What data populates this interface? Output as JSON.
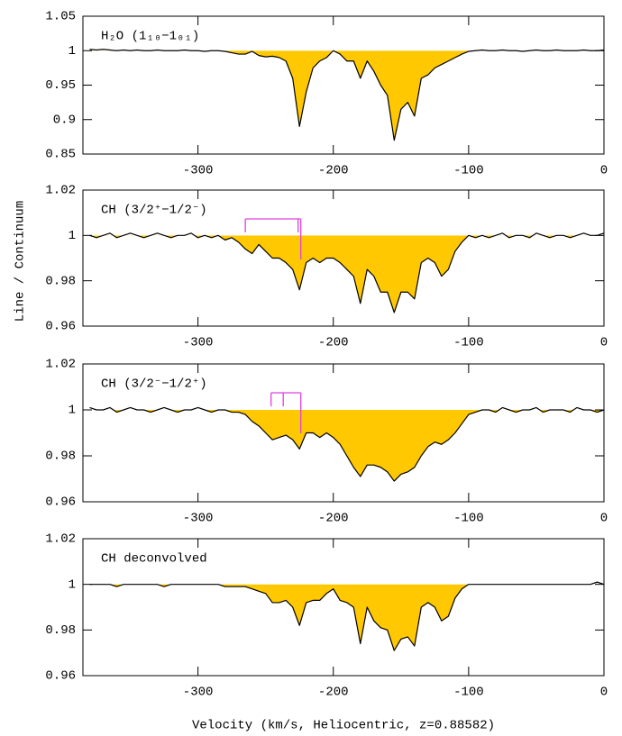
{
  "xlabel": "Velocity (km/s, Heliocentric, z=0.88582)",
  "ylabel": "Line / Continuum",
  "chart_data": [
    {
      "type": "line",
      "title": "H₂O (1₁₀−1₀₁)",
      "x": [
        -380,
        -375,
        -370,
        -365,
        -360,
        -355,
        -350,
        -345,
        -340,
        -335,
        -330,
        -325,
        -320,
        -315,
        -310,
        -305,
        -300,
        -295,
        -290,
        -285,
        -280,
        -275,
        -270,
        -265,
        -260,
        -255,
        -250,
        -245,
        -240,
        -235,
        -230,
        -225,
        -220,
        -215,
        -210,
        -205,
        -200,
        -195,
        -190,
        -185,
        -180,
        -175,
        -170,
        -165,
        -160,
        -155,
        -150,
        -145,
        -140,
        -135,
        -130,
        -125,
        -120,
        -115,
        -110,
        -105,
        -100,
        -95,
        -90,
        -85,
        -80,
        -75,
        -70,
        -65,
        -60,
        -55,
        -50,
        -45,
        -40,
        -35,
        -30,
        -25,
        -20,
        -15,
        -10,
        -5,
        0
      ],
      "values": [
        1.002,
        1.001,
        1.002,
        1.001,
        1.0,
        1.001,
        1.0,
        1.001,
        1.0,
        1.0,
        1.001,
        1.0,
        1.0,
        1.0,
        1.001,
        1.0,
        1.0,
        0.999,
        1.0,
        1.0,
        0.999,
        0.997,
        0.995,
        0.995,
        0.999,
        0.993,
        0.991,
        0.992,
        0.99,
        0.985,
        0.96,
        0.89,
        0.94,
        0.975,
        0.985,
        0.99,
        1.0,
        0.995,
        0.985,
        0.985,
        0.96,
        0.985,
        0.97,
        0.95,
        0.935,
        0.87,
        0.915,
        0.925,
        0.905,
        0.96,
        0.965,
        0.975,
        0.98,
        0.985,
        0.99,
        0.995,
        0.999,
        1.0,
        1.001,
        1.0,
        1.0,
        1.001,
        1.0,
        1.0,
        0.999,
        1.0,
        1.001,
        1.0,
        1.0,
        1.001,
        1.0,
        1.0,
        1.0,
        1.001,
        1.0,
        1.0,
        1.001
      ],
      "line_color": "#000000",
      "fill_color": "#ffc800",
      "continuum": 1,
      "xlim": [
        -385,
        0
      ],
      "xticks": [
        -300,
        -200,
        -100,
        0
      ],
      "ylim": [
        0.85,
        1.05
      ],
      "yticks": [
        0.85,
        0.9,
        0.95,
        1,
        1.05
      ]
    },
    {
      "type": "line",
      "title": "CH (3/2⁺−1/2⁻)",
      "x": [
        -380,
        -375,
        -370,
        -365,
        -360,
        -355,
        -350,
        -345,
        -340,
        -335,
        -330,
        -325,
        -320,
        -315,
        -310,
        -305,
        -300,
        -295,
        -290,
        -285,
        -280,
        -275,
        -270,
        -265,
        -260,
        -255,
        -250,
        -245,
        -240,
        -235,
        -230,
        -225,
        -220,
        -215,
        -210,
        -205,
        -200,
        -195,
        -190,
        -185,
        -180,
        -175,
        -170,
        -165,
        -160,
        -155,
        -150,
        -145,
        -140,
        -135,
        -130,
        -125,
        -120,
        -115,
        -110,
        -105,
        -100,
        -95,
        -90,
        -85,
        -80,
        -75,
        -70,
        -65,
        -60,
        -55,
        -50,
        -45,
        -40,
        -35,
        -30,
        -25,
        -20,
        -15,
        -10,
        -5,
        0
      ],
      "values": [
        1.0,
        0.999,
        1.0,
        1.001,
        0.999,
        1.0,
        1.001,
        1.0,
        0.999,
        1.0,
        1.001,
        1.0,
        0.999,
        1.0,
        1.0,
        1.001,
        0.999,
        1.0,
        0.999,
        1.0,
        0.998,
        0.999,
        0.997,
        0.994,
        0.992,
        0.996,
        0.993,
        0.99,
        0.99,
        0.988,
        0.985,
        0.976,
        0.988,
        0.99,
        0.988,
        0.99,
        0.99,
        0.988,
        0.985,
        0.982,
        0.97,
        0.985,
        0.982,
        0.975,
        0.975,
        0.966,
        0.975,
        0.975,
        0.972,
        0.988,
        0.99,
        0.988,
        0.982,
        0.985,
        0.993,
        0.997,
        1.0,
        0.999,
        1.0,
        0.999,
        1.0,
        1.001,
        0.999,
        1.0,
        1.0,
        0.999,
        1.001,
        1.0,
        0.999,
        1.0,
        1.0,
        0.999,
        1.0,
        1.001,
        1.0,
        1.0,
        1.001
      ],
      "line_color": "#000000",
      "fill_color": "#ffc800",
      "continuum": 1,
      "hfs_markers": {
        "color": "#e040e0",
        "x": [
          -265,
          -226,
          -224
        ]
      },
      "xlim": [
        -385,
        0
      ],
      "xticks": [
        -300,
        -200,
        -100,
        0
      ],
      "ylim": [
        0.96,
        1.02
      ],
      "yticks": [
        0.96,
        0.98,
        1,
        1.02
      ]
    },
    {
      "type": "line",
      "title": "CH (3/2⁻−1/2⁺)",
      "x": [
        -380,
        -375,
        -370,
        -365,
        -360,
        -355,
        -350,
        -345,
        -340,
        -335,
        -330,
        -325,
        -320,
        -315,
        -310,
        -305,
        -300,
        -295,
        -290,
        -285,
        -280,
        -275,
        -270,
        -265,
        -260,
        -255,
        -250,
        -245,
        -240,
        -235,
        -230,
        -225,
        -220,
        -215,
        -210,
        -205,
        -200,
        -195,
        -190,
        -185,
        -180,
        -175,
        -170,
        -165,
        -160,
        -155,
        -150,
        -145,
        -140,
        -135,
        -130,
        -125,
        -120,
        -115,
        -110,
        -105,
        -100,
        -95,
        -90,
        -85,
        -80,
        -75,
        -70,
        -65,
        -60,
        -55,
        -50,
        -45,
        -40,
        -35,
        -30,
        -25,
        -20,
        -15,
        -10,
        -5,
        0
      ],
      "values": [
        1.001,
        1.0,
        1.0,
        1.001,
        0.999,
        1.0,
        1.001,
        1.0,
        1.0,
        0.999,
        1.0,
        1.001,
        1.0,
        0.999,
        1.0,
        1.0,
        1.001,
        1.0,
        0.999,
        1.0,
        1.0,
        0.999,
        0.999,
        0.998,
        0.995,
        0.993,
        0.99,
        0.987,
        0.988,
        0.989,
        0.987,
        0.983,
        0.99,
        0.99,
        0.988,
        0.99,
        0.988,
        0.985,
        0.98,
        0.975,
        0.971,
        0.976,
        0.976,
        0.975,
        0.973,
        0.969,
        0.972,
        0.973,
        0.975,
        0.98,
        0.984,
        0.986,
        0.985,
        0.987,
        0.99,
        0.994,
        0.998,
        0.999,
        1.0,
        1.0,
        0.999,
        1.001,
        1.0,
        0.999,
        1.0,
        1.0,
        1.001,
        0.999,
        1.0,
        1.0,
        1.0,
        0.999,
        1.001,
        1.0,
        1.0,
        0.999,
        1.0
      ],
      "line_color": "#000000",
      "fill_color": "#ffc800",
      "continuum": 1,
      "hfs_markers": {
        "color": "#e040e0",
        "x": [
          -246,
          -237,
          -224
        ]
      },
      "xlim": [
        -385,
        0
      ],
      "xticks": [
        -300,
        -200,
        -100,
        0
      ],
      "ylim": [
        0.96,
        1.02
      ],
      "yticks": [
        0.96,
        0.98,
        1,
        1.02
      ]
    },
    {
      "type": "line",
      "title": "CH deconvolved",
      "x": [
        -380,
        -375,
        -370,
        -365,
        -360,
        -355,
        -350,
        -345,
        -340,
        -335,
        -330,
        -325,
        -320,
        -315,
        -310,
        -305,
        -300,
        -295,
        -290,
        -285,
        -280,
        -275,
        -270,
        -265,
        -260,
        -255,
        -250,
        -245,
        -240,
        -235,
        -230,
        -225,
        -220,
        -215,
        -210,
        -205,
        -200,
        -195,
        -190,
        -185,
        -180,
        -175,
        -170,
        -165,
        -160,
        -155,
        -150,
        -145,
        -140,
        -135,
        -130,
        -125,
        -120,
        -115,
        -110,
        -105,
        -100,
        -95,
        -90,
        -85,
        -80,
        -75,
        -70,
        -65,
        -60,
        -55,
        -50,
        -45,
        -40,
        -35,
        -30,
        -25,
        -20,
        -15,
        -10,
        -5,
        0
      ],
      "values": [
        1.0,
        1.0,
        1.0,
        1.0,
        0.999,
        1.0,
        1.0,
        1.0,
        1.0,
        1.0,
        1.0,
        0.999,
        1.0,
        1.0,
        1.0,
        1.0,
        1.0,
        1.0,
        1.0,
        1.0,
        0.999,
        0.999,
        0.999,
        0.999,
        0.998,
        0.997,
        0.996,
        0.992,
        0.992,
        0.993,
        0.99,
        0.982,
        0.992,
        0.993,
        0.993,
        0.996,
        0.998,
        0.993,
        0.992,
        0.99,
        0.974,
        0.99,
        0.984,
        0.981,
        0.98,
        0.971,
        0.976,
        0.977,
        0.973,
        0.99,
        0.992,
        0.99,
        0.984,
        0.986,
        0.994,
        0.998,
        1.0,
        1.0,
        1.0,
        1.0,
        1.0,
        1.0,
        1.0,
        1.0,
        1.0,
        1.0,
        1.0,
        1.0,
        1.0,
        1.0,
        1.0,
        1.0,
        1.0,
        1.0,
        1.0,
        1.001,
        1.0
      ],
      "line_color": "#000000",
      "fill_color": "#ffc800",
      "continuum": 1,
      "xlim": [
        -385,
        0
      ],
      "xticks": [
        -300,
        -200,
        -100,
        0
      ],
      "ylim": [
        0.96,
        1.02
      ],
      "yticks": [
        0.96,
        0.98,
        1,
        1.02
      ]
    }
  ]
}
